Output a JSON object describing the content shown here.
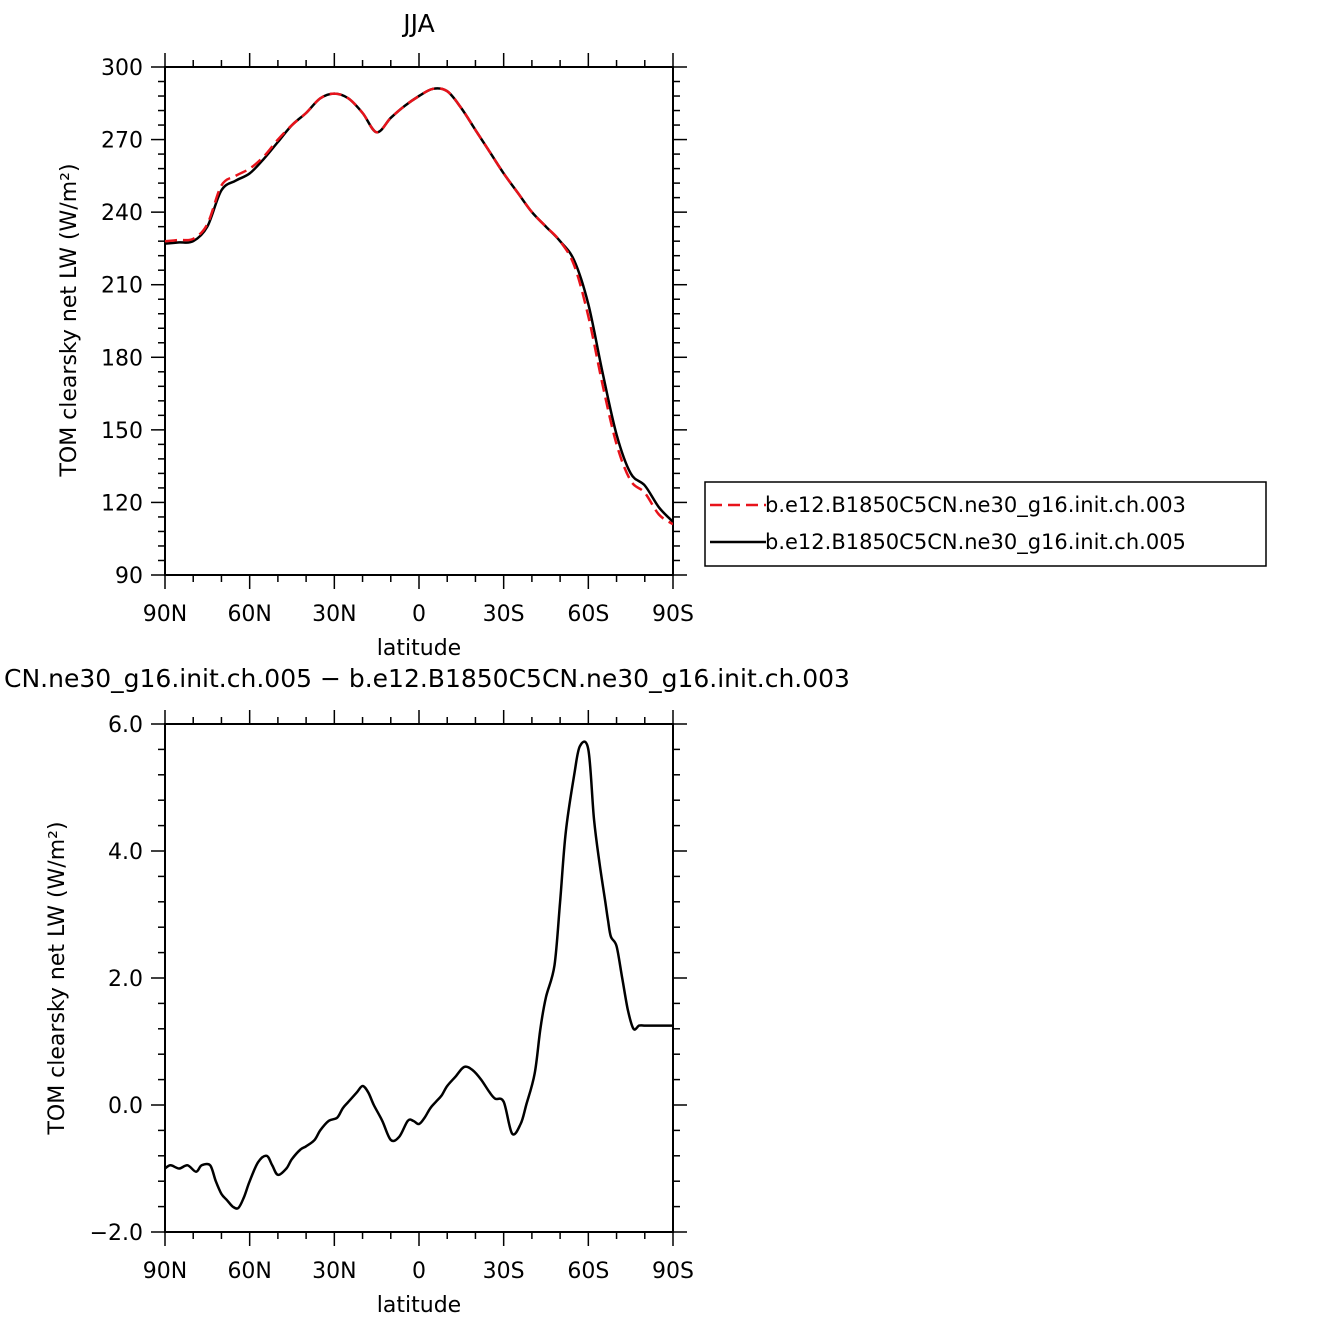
{
  "chart_data": [
    {
      "type": "line",
      "title": "JJA",
      "xlabel": "latitude",
      "ylabel": "TOM clearsky net LW (W/m²)",
      "x_tick_labels": [
        "90N",
        "60N",
        "30N",
        "0",
        "30S",
        "60S",
        "90S"
      ],
      "x_ticks": [
        90,
        60,
        30,
        0,
        -30,
        -60,
        -90
      ],
      "xlim": [
        90,
        -90
      ],
      "ylim": [
        90,
        300
      ],
      "y_ticks": [
        90,
        120,
        150,
        180,
        210,
        240,
        270,
        300
      ],
      "y_tick_labels": [
        "90",
        "120",
        "150",
        "180",
        "210",
        "240",
        "270",
        "300"
      ],
      "grid": false,
      "legend_position": "right",
      "series": [
        {
          "name": "b.e12.B1850C5CN.ne30_g16.init.ch.003",
          "color": "#e8131b",
          "dash": "dashed",
          "x": [
            90,
            85,
            80,
            75,
            70,
            65,
            60,
            55,
            50,
            45,
            40,
            35,
            30,
            25,
            20,
            15,
            10,
            5,
            0,
            -5,
            -10,
            -15,
            -20,
            -25,
            -30,
            -35,
            -40,
            -45,
            -50,
            -55,
            -60,
            -65,
            -70,
            -75,
            -80,
            -85,
            -90
          ],
          "y": [
            228,
            228.5,
            229,
            235,
            251,
            255,
            258,
            263,
            270,
            276,
            281,
            287,
            289,
            287,
            281,
            273,
            279,
            284,
            288,
            291,
            290,
            283,
            274,
            265,
            256,
            248,
            240,
            234,
            228,
            218,
            197,
            169,
            144,
            129,
            124,
            115,
            111
          ]
        },
        {
          "name": "b.e12.B1850C5CN.ne30_g16.init.ch.005",
          "color": "#000000",
          "dash": "solid",
          "x": [
            90,
            85,
            80,
            75,
            70,
            65,
            60,
            55,
            50,
            45,
            40,
            35,
            30,
            25,
            20,
            15,
            10,
            5,
            0,
            -5,
            -10,
            -15,
            -20,
            -25,
            -30,
            -35,
            -40,
            -45,
            -50,
            -55,
            -60,
            -65,
            -70,
            -75,
            -80,
            -85,
            -90
          ],
          "y": [
            227,
            227.5,
            228,
            234,
            249,
            253,
            256,
            262,
            269,
            276,
            281,
            287,
            289,
            287,
            281,
            273,
            279,
            284,
            288,
            291,
            290,
            283,
            274,
            265,
            256,
            248,
            240,
            234,
            228,
            220,
            202,
            174,
            148,
            132,
            127,
            118,
            112
          ]
        }
      ]
    },
    {
      "type": "line",
      "title": "CN.ne30_g16.init.ch.005 − b.e12.B1850C5CN.ne30_g16.init.ch.003",
      "xlabel": "latitude",
      "ylabel": "TOM clearsky net LW (W/m²)",
      "x_tick_labels": [
        "90N",
        "60N",
        "30N",
        "0",
        "30S",
        "60S",
        "90S"
      ],
      "x_ticks": [
        90,
        60,
        30,
        0,
        -30,
        -60,
        -90
      ],
      "xlim": [
        90,
        -90
      ],
      "ylim": [
        -2.0,
        6.0
      ],
      "y_ticks": [
        -2,
        0,
        2,
        4,
        6
      ],
      "y_tick_labels": [
        "−2.0",
        "0.0",
        "2.0",
        "4.0",
        "6.0"
      ],
      "grid": false,
      "series": [
        {
          "color": "#000000",
          "dash": "solid",
          "x": [
            90,
            88,
            85,
            82,
            79,
            77,
            74,
            72,
            70,
            68,
            66,
            64,
            62,
            60,
            57,
            54,
            52,
            50,
            47,
            45,
            42,
            40,
            37,
            35,
            32,
            29,
            27,
            25,
            22,
            20,
            18,
            16,
            13,
            10,
            7,
            4,
            2,
            0,
            -2,
            -4,
            -6,
            -8,
            -10,
            -13,
            -16,
            -19,
            -22,
            -25,
            -27,
            -30,
            -33,
            -36,
            -38,
            -41,
            -43,
            -45,
            -48,
            -50,
            -52,
            -55,
            -57,
            -60,
            -62,
            -64,
            -66,
            -67,
            -68,
            -70,
            -72,
            -74,
            -76,
            -78,
            -80,
            -82,
            -84,
            -86,
            -88,
            -90
          ],
          "y": [
            -1.0,
            -0.95,
            -1.0,
            -0.95,
            -1.05,
            -0.95,
            -0.95,
            -1.2,
            -1.4,
            -1.5,
            -1.6,
            -1.62,
            -1.45,
            -1.2,
            -0.9,
            -0.8,
            -0.95,
            -1.1,
            -1.0,
            -0.85,
            -0.7,
            -0.65,
            -0.55,
            -0.4,
            -0.25,
            -0.2,
            -0.05,
            0.05,
            0.2,
            0.3,
            0.2,
            0.0,
            -0.25,
            -0.55,
            -0.5,
            -0.25,
            -0.25,
            -0.3,
            -0.2,
            -0.05,
            0.05,
            0.15,
            0.3,
            0.45,
            0.6,
            0.55,
            0.4,
            0.2,
            0.1,
            0.05,
            -0.45,
            -0.3,
            0.0,
            0.5,
            1.2,
            1.7,
            2.2,
            3.2,
            4.3,
            5.2,
            5.65,
            5.6,
            4.5,
            3.8,
            3.2,
            2.9,
            2.65,
            2.5,
            2.0,
            1.5,
            1.2,
            1.25,
            1.25,
            1.25,
            1.25,
            1.25,
            1.25,
            1.25
          ]
        }
      ]
    }
  ]
}
